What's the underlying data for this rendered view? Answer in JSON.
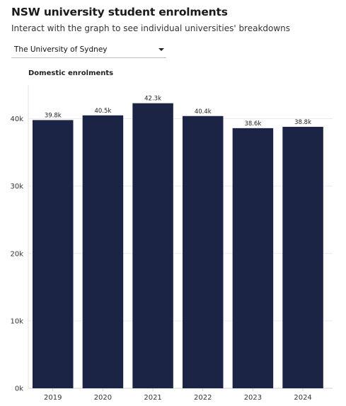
{
  "header": {
    "title": "NSW university student enrolments",
    "subtitle": "Interact with the graph to see individual universities' breakdowns"
  },
  "selector": {
    "selected": "The University of Sydney",
    "icon": "caret-down-icon"
  },
  "chart_data": {
    "type": "bar",
    "title": "Domestic enrolments",
    "categories": [
      "2019",
      "2020",
      "2021",
      "2022",
      "2023",
      "2024"
    ],
    "values": [
      39800,
      40500,
      42300,
      40400,
      38600,
      38800
    ],
    "data_labels": [
      "39.8k",
      "40.5k",
      "42.3k",
      "40.4k",
      "38.6k",
      "38.8k"
    ],
    "y_ticks": [
      0,
      10000,
      20000,
      30000,
      40000
    ],
    "y_tick_labels": [
      "0k",
      "10k",
      "20k",
      "30k",
      "40k"
    ],
    "ylim": [
      0,
      45000
    ],
    "grid": true,
    "bar_color": "#1b2444"
  }
}
